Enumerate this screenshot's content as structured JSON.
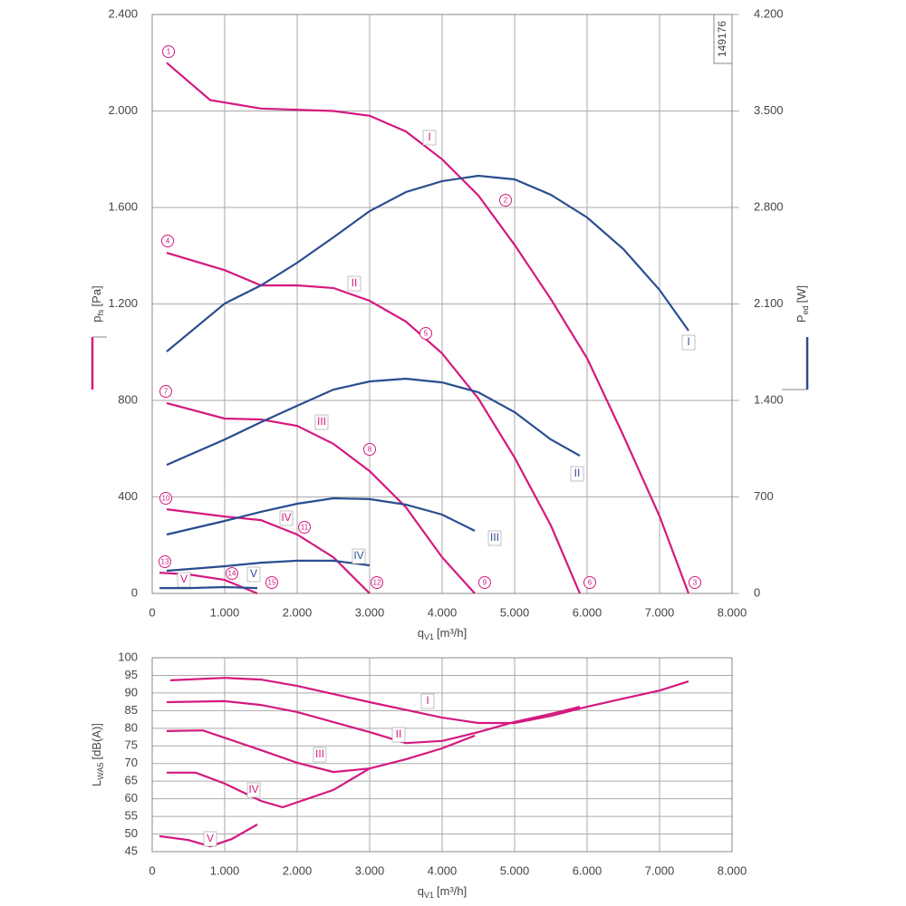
{
  "chart_data": [
    {
      "type": "line",
      "code": "149176",
      "x_label": {
        "symbol": "q",
        "subscript": "V1",
        "unit": "[m³/h]"
      },
      "y_label": {
        "symbol": "p",
        "subscript": "fs",
        "unit": "[Pa]"
      },
      "y2_label": {
        "symbol": "P",
        "subscript": "ed",
        "unit": "[W]"
      },
      "xlim": [
        0,
        8000
      ],
      "xticks": [
        0,
        {
          "value": 1000,
          "label": "1.000"
        },
        {
          "value": 2000,
          "label": "2.000"
        },
        {
          "value": 3000,
          "label": "3.000"
        },
        {
          "value": 4000,
          "label": "4.000"
        },
        {
          "value": 5000,
          "label": "5.000"
        },
        {
          "value": 6000,
          "label": "6.000"
        },
        {
          "value": 7000,
          "label": "7.000"
        },
        {
          "value": 8000,
          "label": "8.000"
        }
      ],
      "ylim": [
        0,
        2400
      ],
      "yticks": [
        0,
        400,
        800,
        {
          "value": 1200,
          "label": "1.200"
        },
        {
          "value": 1600,
          "label": "1.600"
        },
        {
          "value": 2000,
          "label": "2.000"
        },
        {
          "value": 2400,
          "label": "2.400"
        }
      ],
      "y2lim": [
        0,
        4200
      ],
      "y2ticks": [
        0,
        700,
        {
          "value": 1400,
          "label": "1.400"
        },
        {
          "value": 2100,
          "label": "2.100"
        },
        {
          "value": 2800,
          "label": "2.800"
        },
        {
          "value": 3500,
          "label": "3.500"
        },
        {
          "value": 4200,
          "label": "4.200"
        }
      ],
      "grid": true,
      "annotations": [
        "1",
        "2",
        "3",
        "4",
        "5",
        "6",
        "7",
        "8",
        "9",
        "10",
        "11",
        "12",
        "13",
        "14",
        "15"
      ],
      "series": [
        {
          "name": "I",
          "color": "#d4197f",
          "axis": "y",
          "x": [
            200,
            800,
            1500,
            2500,
            3000,
            3500,
            4000,
            4500,
            5000,
            5500,
            6000,
            6500,
            7000,
            7400
          ],
          "values": [
            2200,
            2045,
            2010,
            2000,
            1980,
            1915,
            1800,
            1650,
            1445,
            1220,
            975,
            655,
            320,
            0
          ]
        },
        {
          "name": "II",
          "color": "#d4197f",
          "axis": "y",
          "x": [
            200,
            1000,
            1500,
            2000,
            2500,
            3000,
            3500,
            4000,
            4500,
            5000,
            5500,
            5900
          ],
          "values": [
            1412,
            1340,
            1277,
            1277,
            1266,
            1213,
            1127,
            995,
            808,
            563,
            282,
            0
          ]
        },
        {
          "name": "III",
          "color": "#d4197f",
          "axis": "y",
          "x": [
            200,
            1000,
            1500,
            2000,
            2500,
            3000,
            3500,
            4000,
            4450
          ],
          "values": [
            789,
            725,
            721,
            695,
            620,
            507,
            357,
            150,
            0
          ]
        },
        {
          "name": "IV",
          "color": "#d4197f",
          "axis": "y",
          "x": [
            200,
            1000,
            1500,
            2000,
            2500,
            3000
          ],
          "values": [
            349,
            319,
            304,
            244,
            150,
            0
          ]
        },
        {
          "name": "V",
          "color": "#d4197f",
          "axis": "y",
          "x": [
            100,
            500,
            1000,
            1450
          ],
          "values": [
            86,
            79,
            56,
            0
          ]
        },
        {
          "name": "I",
          "color": "#2a4d8f",
          "axis": "y2",
          "x": [
            200,
            1000,
            1500,
            2000,
            2500,
            3000,
            3500,
            4000,
            4500,
            5000,
            5500,
            6000,
            6500,
            7000,
            7400
          ],
          "values": [
            1755,
            2103,
            2235,
            2399,
            2583,
            2774,
            2912,
            2991,
            3030,
            3004,
            2892,
            2728,
            2498,
            2202,
            1906
          ]
        },
        {
          "name": "II",
          "color": "#2a4d8f",
          "axis": "y2",
          "x": [
            200,
            1000,
            1500,
            2000,
            2500,
            3000,
            3500,
            4000,
            4500,
            5000,
            5500,
            5900
          ],
          "values": [
            933,
            1117,
            1242,
            1361,
            1479,
            1538,
            1558,
            1531,
            1459,
            1315,
            1117,
            999
          ]
        },
        {
          "name": "III",
          "color": "#2a4d8f",
          "axis": "y2",
          "x": [
            200,
            1000,
            1500,
            2000,
            2500,
            3000,
            3500,
            4000,
            4450
          ],
          "values": [
            427,
            526,
            592,
            651,
            690,
            684,
            644,
            572,
            454
          ]
        },
        {
          "name": "IV",
          "color": "#2a4d8f",
          "axis": "y2",
          "x": [
            200,
            1000,
            1500,
            2000,
            2500,
            3000
          ],
          "values": [
            164,
            197,
            223,
            237,
            237,
            204
          ]
        },
        {
          "name": "V",
          "color": "#2a4d8f",
          "axis": "y2",
          "x": [
            100,
            500,
            1000,
            1450
          ],
          "values": [
            39,
            39,
            46,
            39
          ]
        }
      ]
    },
    {
      "type": "line",
      "x_label": {
        "symbol": "q",
        "subscript": "V1",
        "unit": "[m³/h]"
      },
      "y_label": {
        "symbol": "L",
        "subscript": "WA5",
        "unit": "[dB(A)]"
      },
      "xlim": [
        0,
        8000
      ],
      "xticks": [
        0,
        {
          "value": 1000,
          "label": "1.000"
        },
        {
          "value": 2000,
          "label": "2.000"
        },
        {
          "value": 3000,
          "label": "3.000"
        },
        {
          "value": 4000,
          "label": "4.000"
        },
        {
          "value": 5000,
          "label": "5.000"
        },
        {
          "value": 6000,
          "label": "6.000"
        },
        {
          "value": 7000,
          "label": "7.000"
        },
        {
          "value": 8000,
          "label": "8.000"
        }
      ],
      "ylim": [
        45,
        100
      ],
      "yticks": [
        45,
        50,
        55,
        60,
        65,
        70,
        75,
        80,
        85,
        90,
        95,
        100
      ],
      "grid": true,
      "series": [
        {
          "name": "I",
          "color": "#d4197f",
          "x": [
            250,
            1000,
            1500,
            2000,
            3000,
            4000,
            4500,
            5000,
            5500,
            6000,
            6500,
            7000,
            7400
          ],
          "values": [
            93.6,
            94.3,
            93.8,
            92.0,
            87.4,
            83.0,
            81.5,
            81.5,
            83.5,
            86.1,
            88.4,
            90.7,
            93.3
          ]
        },
        {
          "name": "II",
          "color": "#d4197f",
          "x": [
            200,
            1000,
            1500,
            2000,
            3000,
            3500,
            4000,
            4500,
            5000,
            5500,
            5900
          ],
          "values": [
            87.4,
            87.7,
            86.6,
            84.6,
            78.9,
            75.8,
            76.4,
            78.9,
            81.8,
            84.1,
            86.1
          ]
        },
        {
          "name": "III",
          "color": "#d4197f",
          "x": [
            200,
            700,
            1500,
            2000,
            2500,
            3000,
            3500,
            4000,
            4450
          ],
          "values": [
            79.2,
            79.4,
            73.8,
            70.2,
            67.6,
            68.6,
            71.2,
            74.3,
            77.9
          ]
        },
        {
          "name": "IV",
          "color": "#d4197f",
          "x": [
            200,
            600,
            1000,
            1500,
            1800,
            2500,
            3000
          ],
          "values": [
            67.4,
            67.4,
            64.3,
            59.4,
            57.6,
            62.5,
            68.6
          ]
        },
        {
          "name": "V",
          "color": "#d4197f",
          "x": [
            100,
            500,
            800,
            1100,
            1450
          ],
          "values": [
            49.4,
            48.3,
            46.5,
            48.6,
            52.7
          ]
        }
      ]
    }
  ]
}
